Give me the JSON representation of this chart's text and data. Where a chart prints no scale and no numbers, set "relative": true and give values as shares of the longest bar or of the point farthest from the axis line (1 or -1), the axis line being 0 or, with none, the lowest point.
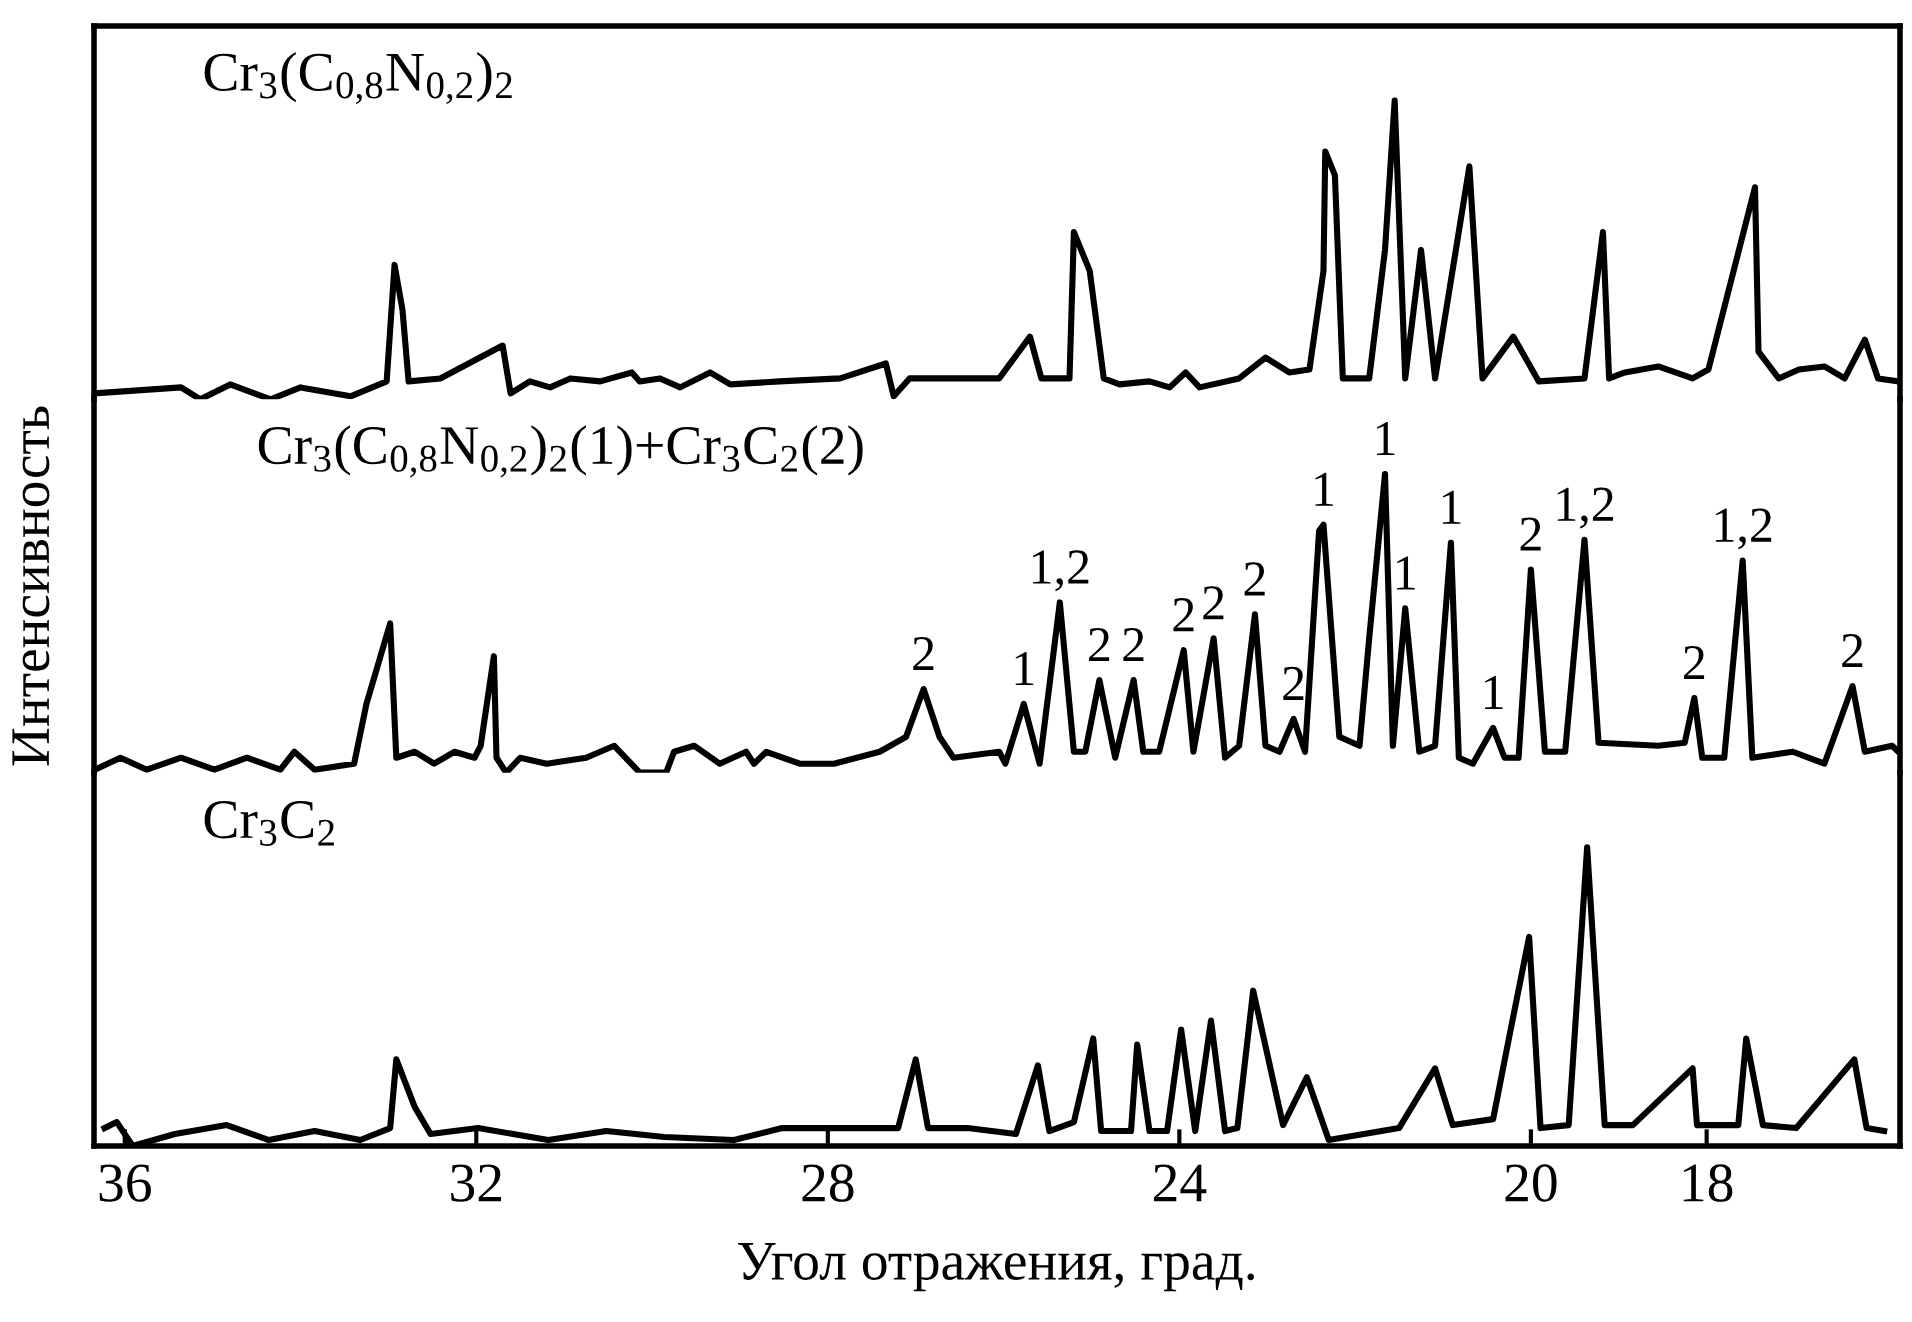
{
  "chart_data": [
    {
      "type": "line",
      "relative": true,
      "xlim": [
        36.35,
        15.8
      ],
      "xticks": [
        36,
        32,
        28,
        24,
        20,
        18
      ],
      "tick_labels": false,
      "series": [
        {
          "name": "Cr$_{3}$(C$_{0,8}$N$_{0,2}$)$_{2}$",
          "color": "#000000",
          "x": [
            36.34,
            35.36,
            35.14,
            34.8,
            34.34,
            34.0,
            33.43,
            33.02,
            32.93,
            32.84,
            32.77,
            32.41,
            31.7,
            31.61,
            31.39,
            31.16,
            30.93,
            30.59,
            30.23,
            30.14,
            29.91,
            29.68,
            29.34,
            29.11,
            28.55,
            27.86,
            27.34,
            27.25,
            27.07,
            26.5,
            26.05,
            25.7,
            25.57,
            25.25,
            25.2,
            25.02,
            24.86,
            24.68,
            24.34,
            24.11,
            23.93,
            23.77,
            23.32,
            23.02,
            22.75,
            22.52,
            22.36,
            22.34,
            22.23,
            22.14,
            21.84,
            21.66,
            21.55,
            21.43,
            21.25,
            21.09,
            20.7,
            20.55,
            20.2,
            19.91,
            19.39,
            19.18,
            19.11,
            18.93,
            18.55,
            18.16,
            17.98,
            17.45,
            17.41,
            17.18,
            16.95,
            16.66,
            16.43,
            16.2,
            16.05,
            15.82
          ],
          "values": [
            0.02,
            0.04,
            0,
            0.05,
            0,
            0.04,
            0.01,
            0.06,
            0.45,
            0.3,
            0.06,
            0.07,
            0.18,
            0.02,
            0.06,
            0.04,
            0.07,
            0.06,
            0.09,
            0.06,
            0.07,
            0.04,
            0.09,
            0.05,
            0.06,
            0.07,
            0.12,
            0.01,
            0.07,
            0.07,
            0.07,
            0.21,
            0.07,
            0.07,
            0.56,
            0.43,
            0.07,
            0.05,
            0.06,
            0.04,
            0.09,
            0.04,
            0.07,
            0.14,
            0.09,
            0.1,
            0.43,
            0.83,
            0.75,
            0.07,
            0.07,
            0.5,
            1,
            0.07,
            0.5,
            0.07,
            0.78,
            0.07,
            0.21,
            0.06,
            0.07,
            0.56,
            0.07,
            0.09,
            0.11,
            0.07,
            0.1,
            0.71,
            0.16,
            0.07,
            0.1,
            0.11,
            0.07,
            0.2,
            0.07,
            0.06
          ]
        }
      ]
    },
    {
      "type": "line",
      "relative": true,
      "xlim": [
        36.35,
        15.8
      ],
      "xticks": [
        36,
        32,
        28,
        24,
        20,
        18
      ],
      "tick_labels": false,
      "ylabel": "Интенсивность",
      "series": [
        {
          "name": "Cr$_{3}$(C$_{0,8}$N$_{0,2}$)$_{2}$(1)+Cr$_{3}$C$_{2}$(2)",
          "color": "#000000",
          "x": [
            36.34,
            36.05,
            35.75,
            35.36,
            34.98,
            34.61,
            34.23,
            34.07,
            33.84,
            33.39,
            33.25,
            32.98,
            32.91,
            32.7,
            32.48,
            32.25,
            32.02,
            31.95,
            31.8,
            31.77,
            31.66,
            31.5,
            31.2,
            30.75,
            30.43,
            30.14,
            29.84,
            29.75,
            29.52,
            29.23,
            28.93,
            28.84,
            28.7,
            28.32,
            27.93,
            27.41,
            27.11,
            26.91,
            26.73,
            26.57,
            26.05,
            25.98,
            25.77,
            25.59,
            25.36,
            25.2,
            25.07,
            24.91,
            24.73,
            24.52,
            24.41,
            24.23,
            23.95,
            23.84,
            23.61,
            23.48,
            23.32,
            23.14,
            23.02,
            22.86,
            22.7,
            22.57,
            22.41,
            22.36,
            22.18,
            21.95,
            21.84,
            21.66,
            21.57,
            21.43,
            21.27,
            21.09,
            20.91,
            20.82,
            20.66,
            20.43,
            20.3,
            20.14,
            20.0,
            19.84,
            19.61,
            19.39,
            19.23,
            18.55,
            18.25,
            18.14,
            18.05,
            17.8,
            17.59,
            17.48,
            17.02,
            16.66,
            16.34,
            16.2,
            15.89,
            15.82
          ],
          "values": [
            0.01,
            0.05,
            0.01,
            0.05,
            0.01,
            0.05,
            0.01,
            0.07,
            0.01,
            0.03,
            0.23,
            0.5,
            0.05,
            0.07,
            0.03,
            0.07,
            0.05,
            0.09,
            0.39,
            0.05,
            0,
            0.05,
            0.03,
            0.05,
            0.09,
            0,
            0,
            0.07,
            0.09,
            0.03,
            0.07,
            0.03,
            0.07,
            0.03,
            0.03,
            0.07,
            0.12,
            0.28,
            0.12,
            0.05,
            0.07,
            0.03,
            0.23,
            0.03,
            0.57,
            0.07,
            0.07,
            0.31,
            0.05,
            0.31,
            0.07,
            0.07,
            0.41,
            0.07,
            0.45,
            0.05,
            0.09,
            0.53,
            0.09,
            0.07,
            0.18,
            0.07,
            0.81,
            0.83,
            0.12,
            0.09,
            0.45,
            1,
            0.09,
            0.55,
            0.07,
            0.09,
            0.77,
            0.05,
            0.03,
            0.15,
            0.05,
            0.05,
            0.68,
            0.07,
            0.07,
            0.78,
            0.1,
            0.09,
            0.1,
            0.25,
            0.05,
            0.05,
            0.71,
            0.05,
            0.07,
            0.03,
            0.29,
            0.07,
            0.09,
            0.07
          ]
        }
      ],
      "annotations": [
        {
          "text": "2",
          "x": 26.91,
          "y": 0.28
        },
        {
          "text": "1",
          "x": 25.77,
          "y": 0.23
        },
        {
          "text": "1,2",
          "x": 25.36,
          "y": 0.57
        },
        {
          "text": "2",
          "x": 24.91,
          "y": 0.31
        },
        {
          "text": "2",
          "x": 24.52,
          "y": 0.31
        },
        {
          "text": "2",
          "x": 23.95,
          "y": 0.41
        },
        {
          "text": "2",
          "x": 23.61,
          "y": 0.45
        },
        {
          "text": "2",
          "x": 23.14,
          "y": 0.53
        },
        {
          "text": "2",
          "x": 22.7,
          "y": 0.18
        },
        {
          "text": "1",
          "x": 22.36,
          "y": 0.83
        },
        {
          "text": "1",
          "x": 21.66,
          "y": 1
        },
        {
          "text": "1",
          "x": 21.43,
          "y": 0.55
        },
        {
          "text": "1",
          "x": 20.91,
          "y": 0.77
        },
        {
          "text": "1",
          "x": 20.43,
          "y": 0.15
        },
        {
          "text": "2",
          "x": 20.0,
          "y": 0.68
        },
        {
          "text": "1,2",
          "x": 19.39,
          "y": 0.78
        },
        {
          "text": "2",
          "x": 18.14,
          "y": 0.25
        },
        {
          "text": "1,2",
          "x": 17.59,
          "y": 0.71
        },
        {
          "text": "2",
          "x": 16.34,
          "y": 0.29
        }
      ]
    },
    {
      "type": "line",
      "relative": true,
      "xlim": [
        36.35,
        15.8
      ],
      "xticks": [
        36,
        32,
        28,
        24,
        20,
        18
      ],
      "tick_labels": "x",
      "xlabel": "Угол отражения, град.",
      "series": [
        {
          "name": "Cr$_{3}$C$_{2}$",
          "color": "#000000",
          "x": [
            36.23,
            36.09,
            35.91,
            35.43,
            34.84,
            34.36,
            33.84,
            33.32,
            32.98,
            32.91,
            32.7,
            32.52,
            31.98,
            31.18,
            30.52,
            29.86,
            29.07,
            28.52,
            27.2,
            27.0,
            26.86,
            26.41,
            25.86,
            25.61,
            25.48,
            25.2,
            24.98,
            24.89,
            24.55,
            24.48,
            24.34,
            24.14,
            23.98,
            23.82,
            23.64,
            23.48,
            23.34,
            23.16,
            22.82,
            22.55,
            22.3,
            21.5,
            21.09,
            20.89,
            20.43,
            20.23,
            20.02,
            19.89,
            19.57,
            19.36,
            19.16,
            18.84,
            18.16,
            18.11,
            17.64,
            17.55,
            17.36,
            16.98,
            16.32,
            16.18,
            15.98
          ],
          "values": [
            0.06,
            0.08,
            0,
            0.04,
            0.07,
            0.02,
            0.05,
            0.02,
            0.06,
            0.29,
            0.13,
            0.04,
            0.06,
            0.02,
            0.05,
            0.03,
            0.02,
            0.06,
            0.06,
            0.29,
            0.06,
            0.06,
            0.04,
            0.27,
            0.05,
            0.08,
            0.36,
            0.05,
            0.05,
            0.34,
            0.05,
            0.05,
            0.39,
            0.05,
            0.42,
            0.05,
            0.06,
            0.52,
            0.07,
            0.23,
            0.02,
            0.06,
            0.26,
            0.07,
            0.09,
            0.39,
            0.7,
            0.06,
            0.07,
            1,
            0.07,
            0.07,
            0.26,
            0.07,
            0.07,
            0.36,
            0.07,
            0.06,
            0.29,
            0.06,
            0.05
          ]
        }
      ]
    }
  ]
}
